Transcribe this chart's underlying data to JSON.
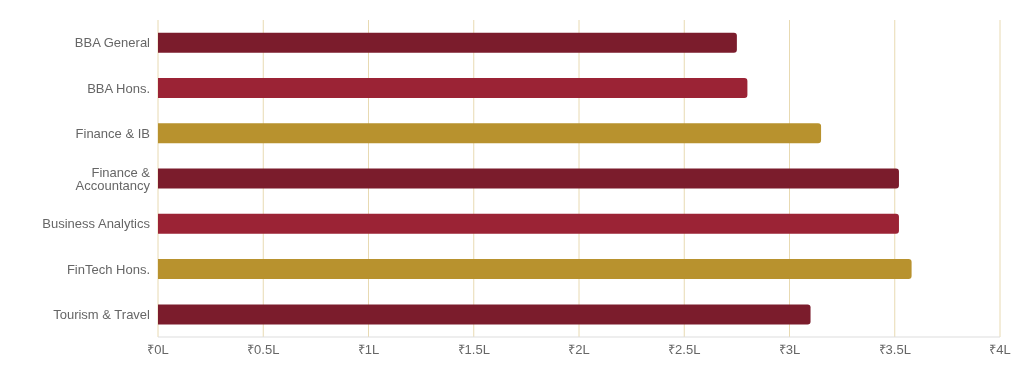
{
  "chart_data": {
    "type": "bar",
    "orientation": "horizontal",
    "categories": [
      "BBA General",
      "BBA Hons.",
      "Finance & IB",
      "Finance & Accountancy",
      "Business Analytics",
      "FinTech Hons.",
      "Tourism & Travel"
    ],
    "values": [
      2.75,
      2.8,
      3.15,
      3.52,
      3.52,
      3.58,
      3.1
    ],
    "colors": [
      "#7b1c2c",
      "#9b2335",
      "#b8922e",
      "#7b1c2c",
      "#9b2335",
      "#b8922e",
      "#7b1c2c"
    ],
    "xlim": [
      0,
      4
    ],
    "xticks": [
      {
        "value": 0,
        "label": "₹0L"
      },
      {
        "value": 0.5,
        "label": "₹0.5L"
      },
      {
        "value": 1,
        "label": "₹1L"
      },
      {
        "value": 1.5,
        "label": "₹1.5L"
      },
      {
        "value": 2,
        "label": "₹2L"
      },
      {
        "value": 2.5,
        "label": "₹2.5L"
      },
      {
        "value": 3,
        "label": "₹3L"
      },
      {
        "value": 3.5,
        "label": "₹3.5L"
      },
      {
        "value": 4,
        "label": "₹4L"
      }
    ],
    "grid": "x",
    "legend": false
  }
}
